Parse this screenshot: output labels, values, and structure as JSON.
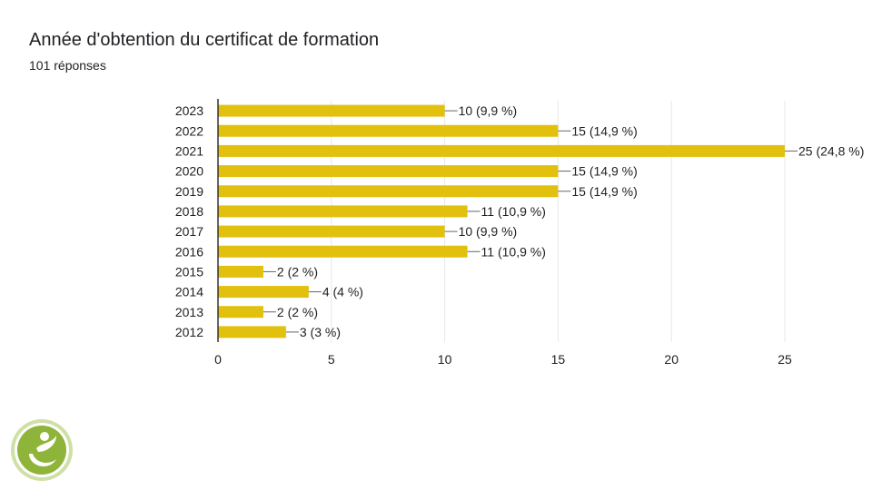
{
  "header": {
    "title": "Année d'obtention du certificat de formation",
    "subtitle": "101 réponses"
  },
  "colors": {
    "bar": "#e2c00e",
    "grid": "#e8e8e8",
    "axis": "#333333",
    "text": "#202124",
    "connector": "#666666",
    "logo_green": "#8fb43a",
    "logo_ring": "#cfe0a6"
  },
  "logo": {
    "icon": "person-leaf-logo-icon"
  },
  "chart_data": {
    "type": "bar",
    "orientation": "horizontal",
    "categories": [
      "2023",
      "2022",
      "2021",
      "2020",
      "2019",
      "2018",
      "2017",
      "2016",
      "2015",
      "2014",
      "2013",
      "2012"
    ],
    "values": [
      10,
      15,
      25,
      15,
      15,
      11,
      10,
      11,
      2,
      4,
      2,
      3
    ],
    "data_labels": [
      "10 (9,9 %)",
      "15 (14,9 %)",
      "25 (24,8 %)",
      "15 (14,9 %)",
      "15 (14,9 %)",
      "11 (10,9 %)",
      "10 (9,9 %)",
      "11 (10,9 %)",
      "2 (2 %)",
      "4 (4 %)",
      "2 (2 %)",
      "3 (3 %)"
    ],
    "xlim": [
      0,
      25
    ],
    "xticks": [
      0,
      5,
      10,
      15,
      20,
      25
    ],
    "grid": true
  }
}
